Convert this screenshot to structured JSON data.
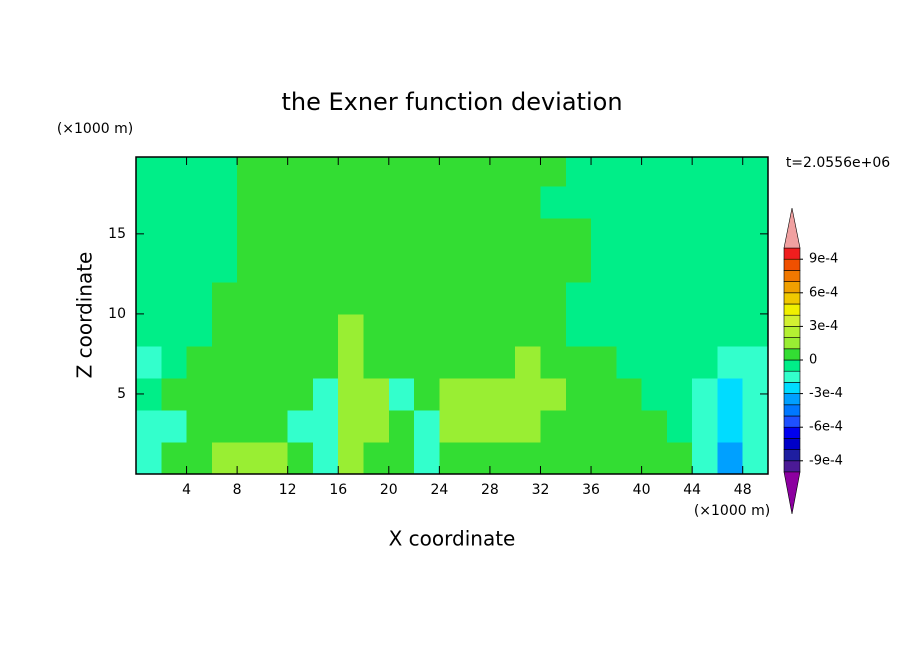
{
  "chart_data": {
    "type": "contour",
    "title": "the Exner function deviation",
    "x_label": "X coordinate",
    "y_label": "Z coordinate",
    "x_unit": "(×1000 m)",
    "y_unit": "(×1000 m)",
    "time_label": "t=2.0556e+06",
    "xlim": [
      0,
      50
    ],
    "ylim": [
      0,
      19.8
    ],
    "xticks": [
      4,
      8,
      12,
      16,
      20,
      24,
      28,
      32,
      36,
      40,
      44,
      48
    ],
    "yticks": [
      5,
      10,
      15
    ],
    "x": [
      1,
      3,
      5,
      7,
      9,
      11,
      13,
      15,
      17,
      19,
      21,
      23,
      25,
      27,
      29,
      31,
      33,
      35,
      37,
      39,
      41,
      43,
      45,
      47,
      49
    ],
    "y": [
      1,
      3,
      5,
      7,
      9,
      11,
      13,
      15,
      17,
      19
    ],
    "values": [
      [
        -0.00015,
        5e-05,
        5e-05,
        0.00015,
        0.00015,
        0.00015,
        5e-05,
        -0.00015,
        0.00015,
        5e-05,
        5e-05,
        -0.00015,
        5e-05,
        5e-05,
        5e-05,
        5e-05,
        5e-05,
        5e-05,
        5e-05,
        5e-05,
        5e-05,
        5e-05,
        -0.00015,
        -0.00035,
        -0.00015
      ],
      [
        -0.00015,
        -0.00015,
        5e-05,
        5e-05,
        5e-05,
        5e-05,
        -0.00015,
        -0.00015,
        0.00015,
        0.00015,
        5e-05,
        -0.00015,
        0.00015,
        0.00015,
        0.00015,
        0.00015,
        5e-05,
        5e-05,
        5e-05,
        5e-05,
        5e-05,
        -5e-05,
        -0.00015,
        -0.00025,
        -0.00015
      ],
      [
        -5e-05,
        5e-05,
        5e-05,
        5e-05,
        5e-05,
        5e-05,
        5e-05,
        -0.00015,
        0.00015,
        0.00015,
        -0.00015,
        5e-05,
        0.00015,
        0.00015,
        0.00015,
        0.00015,
        0.00015,
        5e-05,
        5e-05,
        5e-05,
        -5e-05,
        -5e-05,
        -0.00015,
        -0.00025,
        -0.00015
      ],
      [
        -0.00015,
        -5e-05,
        5e-05,
        5e-05,
        5e-05,
        5e-05,
        5e-05,
        5e-05,
        0.00015,
        5e-05,
        5e-05,
        5e-05,
        5e-05,
        5e-05,
        5e-05,
        0.00015,
        5e-05,
        5e-05,
        5e-05,
        -5e-05,
        -5e-05,
        -5e-05,
        -5e-05,
        -0.00015,
        -0.00015
      ],
      [
        -5e-05,
        -5e-05,
        -5e-05,
        5e-05,
        5e-05,
        5e-05,
        5e-05,
        5e-05,
        0.00015,
        5e-05,
        5e-05,
        5e-05,
        5e-05,
        5e-05,
        5e-05,
        5e-05,
        5e-05,
        -5e-05,
        -5e-05,
        -5e-05,
        -5e-05,
        -5e-05,
        -5e-05,
        -5e-05,
        -5e-05
      ],
      [
        -5e-05,
        -5e-05,
        -5e-05,
        5e-05,
        5e-05,
        5e-05,
        5e-05,
        5e-05,
        5e-05,
        5e-05,
        5e-05,
        5e-05,
        5e-05,
        5e-05,
        5e-05,
        5e-05,
        5e-05,
        -5e-05,
        -5e-05,
        -5e-05,
        -5e-05,
        -5e-05,
        -5e-05,
        -5e-05,
        -5e-05
      ],
      [
        -5e-05,
        -5e-05,
        -5e-05,
        -5e-05,
        5e-05,
        5e-05,
        5e-05,
        5e-05,
        5e-05,
        5e-05,
        5e-05,
        5e-05,
        5e-05,
        5e-05,
        5e-05,
        5e-05,
        5e-05,
        5e-05,
        -5e-05,
        -5e-05,
        -5e-05,
        -5e-05,
        -5e-05,
        -5e-05,
        -5e-05
      ],
      [
        -5e-05,
        -5e-05,
        -5e-05,
        -5e-05,
        5e-05,
        5e-05,
        5e-05,
        5e-05,
        5e-05,
        5e-05,
        5e-05,
        5e-05,
        5e-05,
        5e-05,
        5e-05,
        5e-05,
        5e-05,
        5e-05,
        -5e-05,
        -5e-05,
        -5e-05,
        -5e-05,
        -5e-05,
        -5e-05,
        -5e-05
      ],
      [
        -5e-05,
        -5e-05,
        -5e-05,
        -5e-05,
        5e-05,
        5e-05,
        5e-05,
        5e-05,
        5e-05,
        5e-05,
        5e-05,
        5e-05,
        5e-05,
        5e-05,
        5e-05,
        5e-05,
        -5e-05,
        -5e-05,
        -5e-05,
        -5e-05,
        -5e-05,
        -5e-05,
        -5e-05,
        -5e-05,
        -5e-05
      ],
      [
        -5e-05,
        -5e-05,
        -5e-05,
        -5e-05,
        5e-05,
        5e-05,
        5e-05,
        5e-05,
        5e-05,
        5e-05,
        5e-05,
        5e-05,
        5e-05,
        5e-05,
        5e-05,
        5e-05,
        5e-05,
        -5e-05,
        -5e-05,
        -5e-05,
        -5e-05,
        -5e-05,
        -5e-05,
        -5e-05,
        -5e-05
      ]
    ],
    "levels": [
      -0.001,
      -0.0009,
      -0.0008,
      -0.0007,
      -0.0006,
      -0.0005,
      -0.0004,
      -0.0003,
      -0.0002,
      -0.0001,
      0,
      0.0001,
      0.0002,
      0.0003,
      0.0004,
      0.0005,
      0.0006,
      0.0007,
      0.0008,
      0.0009,
      0.001
    ],
    "colors": [
      "#4b1a96",
      "#1e1ea0",
      "#0000c8",
      "#0000f0",
      "#1e50ff",
      "#0078ff",
      "#00a0ff",
      "#00dcff",
      "#33ffcc",
      "#00ee88",
      "#33dd33",
      "#99ee33",
      "#b4f032",
      "#d2f032",
      "#f0f000",
      "#f0c800",
      "#f0a000",
      "#f07800",
      "#f05000",
      "#f01e1e"
    ],
    "over_color": "#f0a0a0",
    "under_color": "#8c00a0",
    "cbar_ticks": [
      {
        "value": -0.0009,
        "label": "-9e-4"
      },
      {
        "value": -0.0006,
        "label": "-6e-4"
      },
      {
        "value": -0.0003,
        "label": "-3e-4"
      },
      0,
      {
        "value": 0.0003,
        "label": "3e-4"
      },
      {
        "value": 0.0006,
        "label": "6e-4"
      },
      {
        "value": 0.0009,
        "label": "9e-4"
      }
    ]
  }
}
